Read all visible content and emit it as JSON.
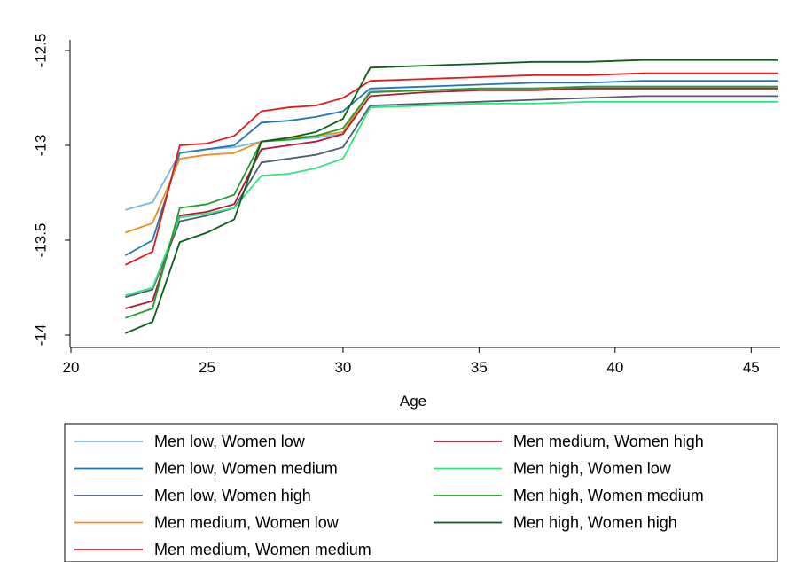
{
  "chart_data": {
    "type": "line",
    "title": "",
    "xlabel": "Age",
    "ylabel": "",
    "xlim": [
      20,
      46
    ],
    "ylim": [
      -14,
      -12.5
    ],
    "xticks": [
      "20",
      "25",
      "30",
      "35",
      "40",
      "45"
    ],
    "yticks": [
      "-14",
      "-13.5",
      "-13",
      "-12.5"
    ],
    "grid": false,
    "legend_position": "bottom",
    "series": [
      {
        "name": "Men low, Women low",
        "color": "#74b9e4",
        "x": [
          22,
          23,
          24,
          25,
          26,
          27,
          28,
          29,
          30,
          31,
          33,
          35,
          37,
          39,
          41,
          42,
          44,
          46
        ],
        "y": [
          -13.34,
          -13.3,
          -13.04,
          -13.02,
          -13.01,
          -12.98,
          -12.97,
          -12.96,
          -12.94,
          -12.71,
          -12.71,
          -12.7,
          -12.7,
          -12.69,
          -12.69,
          -12.69,
          -12.69,
          -12.69
        ]
      },
      {
        "name": "Men low, Women medium",
        "color": "#1f78b4",
        "x": [
          22,
          23,
          24,
          25,
          26,
          27,
          28,
          29,
          30,
          31,
          33,
          35,
          37,
          39,
          41,
          42,
          44,
          46
        ],
        "y": [
          -13.58,
          -13.5,
          -13.04,
          -13.02,
          -13.0,
          -12.88,
          -12.87,
          -12.85,
          -12.82,
          -12.7,
          -12.69,
          -12.68,
          -12.67,
          -12.67,
          -12.66,
          -12.66,
          -12.66,
          -12.66
        ]
      },
      {
        "name": "Men low, Women high",
        "color": "#4d5b73",
        "x": [
          22,
          23,
          24,
          25,
          26,
          27,
          28,
          29,
          30,
          31,
          33,
          35,
          37,
          39,
          41,
          42,
          44,
          46
        ],
        "y": [
          -13.8,
          -13.76,
          -13.4,
          -13.37,
          -13.33,
          -13.09,
          -13.07,
          -13.05,
          -13.01,
          -12.79,
          -12.78,
          -12.77,
          -12.76,
          -12.75,
          -12.74,
          -12.74,
          -12.74,
          -12.74
        ]
      },
      {
        "name": "Men medium, Women low",
        "color": "#f28c1c",
        "x": [
          22,
          23,
          24,
          25,
          26,
          27,
          28,
          29,
          30,
          31,
          33,
          35,
          37,
          39,
          41,
          42,
          44,
          46
        ],
        "y": [
          -13.46,
          -13.41,
          -13.07,
          -13.05,
          -13.04,
          -12.98,
          -12.96,
          -12.95,
          -12.93,
          -12.72,
          -12.71,
          -12.7,
          -12.7,
          -12.7,
          -12.7,
          -12.7,
          -12.7,
          -12.7
        ]
      },
      {
        "name": "Men medium, Women medium",
        "color": "#e31a1c",
        "x": [
          22,
          23,
          24,
          25,
          26,
          27,
          28,
          29,
          30,
          31,
          33,
          35,
          37,
          39,
          41,
          42,
          44,
          46
        ],
        "y": [
          -13.63,
          -13.56,
          -13.0,
          -12.99,
          -12.95,
          -12.82,
          -12.8,
          -12.79,
          -12.75,
          -12.66,
          -12.65,
          -12.64,
          -12.63,
          -12.63,
          -12.62,
          -12.62,
          -12.62,
          -12.62
        ]
      },
      {
        "name": "Men medium, Women high",
        "color": "#b0193a",
        "x": [
          22,
          23,
          24,
          25,
          26,
          27,
          28,
          29,
          30,
          31,
          33,
          35,
          37,
          39,
          41,
          42,
          44,
          46
        ],
        "y": [
          -13.86,
          -13.82,
          -13.37,
          -13.35,
          -13.31,
          -13.02,
          -13.0,
          -12.98,
          -12.94,
          -12.74,
          -12.72,
          -12.71,
          -12.71,
          -12.7,
          -12.7,
          -12.7,
          -12.7,
          -12.7
        ]
      },
      {
        "name": "Men high, Women low",
        "color": "#2ee67c",
        "x": [
          22,
          23,
          24,
          25,
          26,
          27,
          28,
          29,
          30,
          31,
          33,
          35,
          37,
          39,
          41,
          42,
          44,
          46
        ],
        "y": [
          -13.79,
          -13.75,
          -13.38,
          -13.36,
          -13.33,
          -13.16,
          -13.15,
          -13.12,
          -13.07,
          -12.8,
          -12.79,
          -12.78,
          -12.78,
          -12.77,
          -12.77,
          -12.77,
          -12.77,
          -12.77
        ]
      },
      {
        "name": "Men high, Women medium",
        "color": "#1f9e2c",
        "x": [
          22,
          23,
          24,
          25,
          26,
          27,
          28,
          29,
          30,
          31,
          33,
          35,
          37,
          39,
          41,
          42,
          44,
          46
        ],
        "y": [
          -13.91,
          -13.86,
          -13.33,
          -13.31,
          -13.26,
          -12.98,
          -12.97,
          -12.95,
          -12.91,
          -12.72,
          -12.71,
          -12.7,
          -12.7,
          -12.69,
          -12.69,
          -12.69,
          -12.69,
          -12.69
        ]
      },
      {
        "name": "Men high, Women high",
        "color": "#0b5e16",
        "x": [
          22,
          23,
          24,
          25,
          26,
          27,
          28,
          29,
          30,
          31,
          33,
          35,
          37,
          39,
          41,
          42,
          44,
          46
        ],
        "y": [
          -13.99,
          -13.93,
          -13.51,
          -13.46,
          -13.39,
          -12.98,
          -12.96,
          -12.93,
          -12.86,
          -12.59,
          -12.58,
          -12.57,
          -12.56,
          -12.56,
          -12.55,
          -12.55,
          -12.55,
          -12.55
        ]
      }
    ]
  }
}
